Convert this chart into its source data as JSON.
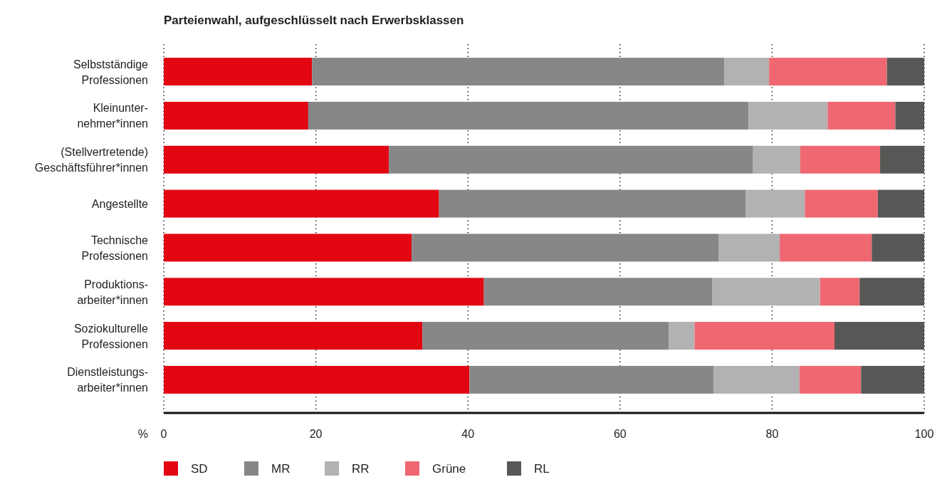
{
  "chart_data": {
    "type": "bar",
    "orientation": "horizontal",
    "stacked": true,
    "title": "Parteienwahl, aufgeschlüsselt nach Erwerbsklassen",
    "xlabel": "%",
    "categories": [
      "Selbstständige\nProfessionen",
      "Kleinunter-\nnehmer*innen",
      "(Stellvertretende)\nGeschäftsführer*innen",
      "Angestellte",
      "Technische\nProfessionen",
      "Produktions-\narbeiter*innen",
      "Soziokulturelle\nProfessionen",
      "Dienstleistungs-\narbeiter*innen"
    ],
    "series": [
      {
        "name": "SD",
        "color": "#e20613",
        "values": [
          19.5,
          19.0,
          29.6,
          36.2,
          32.6,
          42.1,
          34.0,
          40.2
        ]
      },
      {
        "name": "MR",
        "color": "#878787",
        "values": [
          54.2,
          57.9,
          47.9,
          40.3,
          40.4,
          30.0,
          32.4,
          32.1
        ]
      },
      {
        "name": "RR",
        "color": "#b2b2b2",
        "values": [
          5.9,
          10.4,
          6.2,
          7.8,
          8.0,
          14.2,
          3.4,
          11.3
        ]
      },
      {
        "name": "Grüne",
        "color": "#ef6871",
        "values": [
          15.5,
          8.9,
          10.5,
          9.6,
          12.1,
          5.2,
          18.4,
          8.1
        ]
      },
      {
        "name": "RL",
        "color": "#575756",
        "values": [
          4.9,
          3.8,
          5.8,
          6.1,
          6.9,
          8.5,
          11.8,
          8.3
        ]
      }
    ],
    "xlim": [
      0,
      100
    ],
    "xticks": [
      0,
      20,
      40,
      60,
      80,
      100
    ],
    "grid": "x",
    "legend": "bottom"
  }
}
